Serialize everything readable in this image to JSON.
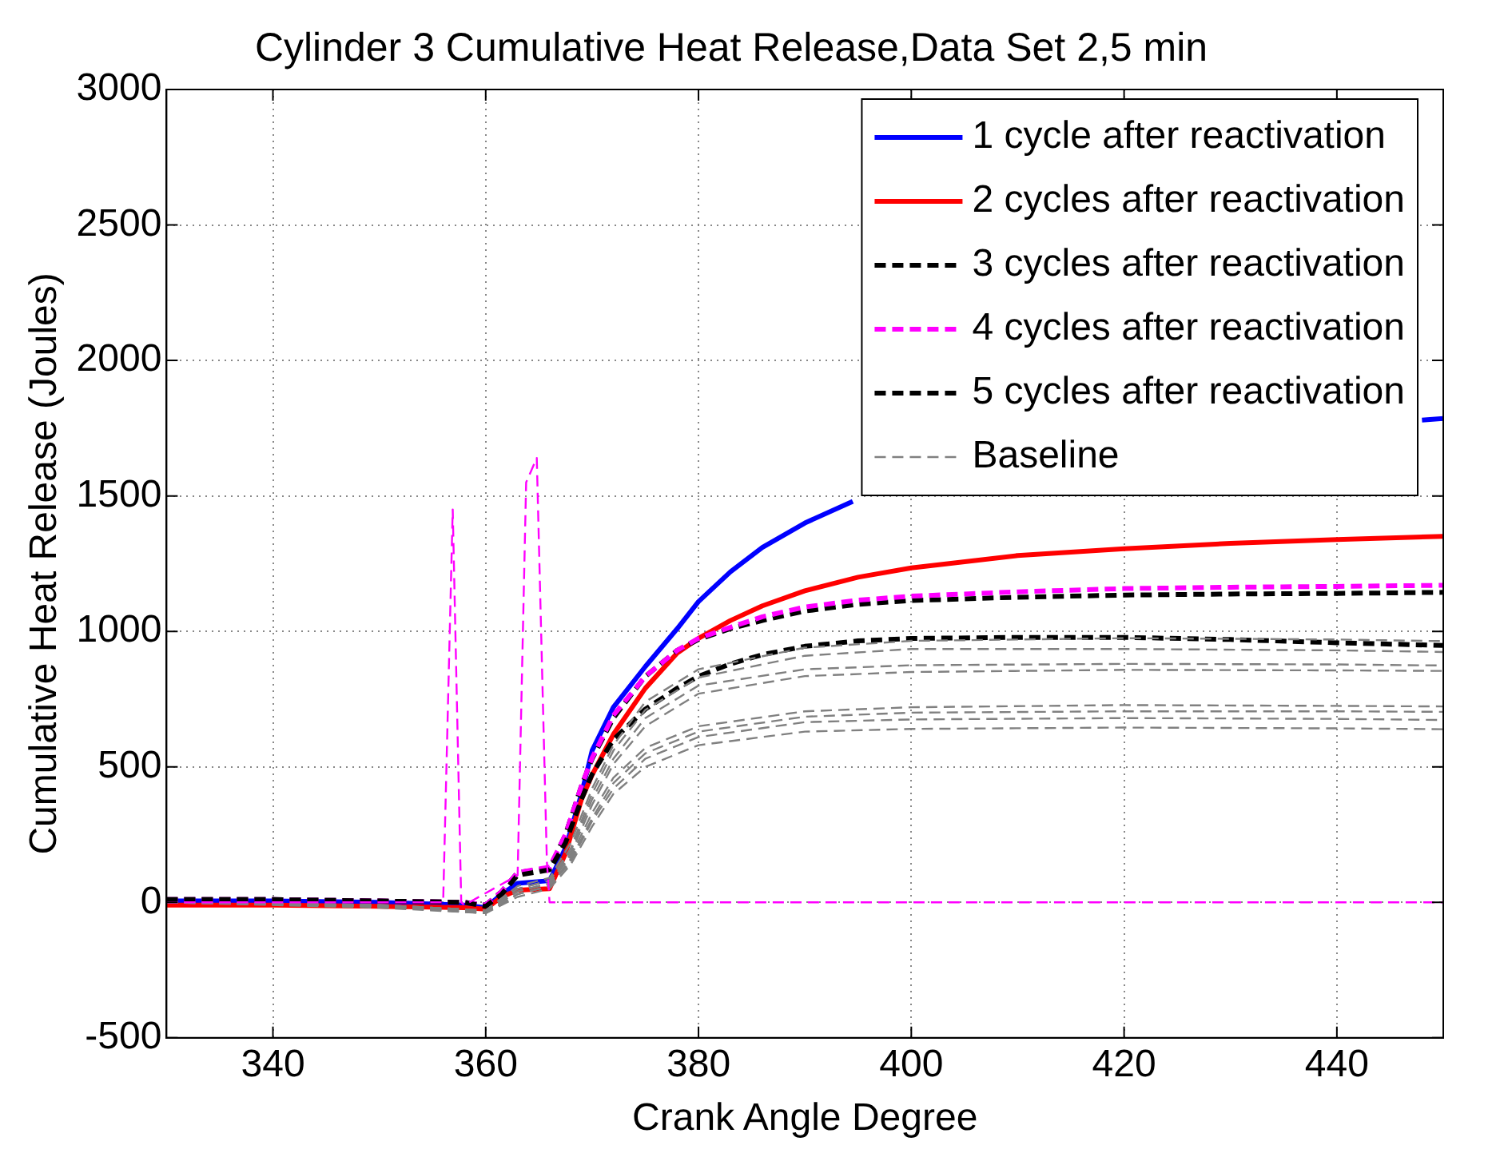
{
  "chart_data": {
    "type": "line",
    "title": "Cylinder 3 Cumulative Heat Release,Data Set 2,5 min",
    "xlabel": "Crank Angle Degree",
    "ylabel": "Cumulative Heat Release (Joules)",
    "xlim": [
      330,
      450
    ],
    "xticks": [
      340,
      360,
      380,
      400,
      420,
      440
    ],
    "ylim": [
      -500,
      3000
    ],
    "yticks": [
      -500,
      0,
      500,
      1000,
      1500,
      2000,
      2500,
      3000
    ],
    "grid": true,
    "legend": "top right",
    "marker": "none",
    "series": [
      {
        "name": "1 cycle after reactivation",
        "color": "#0000ff",
        "line_style": "solid",
        "x": [
          330,
          340,
          350,
          358,
          360,
          361.5,
          363,
          366,
          367.5,
          369,
          370,
          372,
          375,
          378,
          380,
          383,
          386,
          390,
          394.5,
          395,
          448,
          450
        ],
        "values": [
          5,
          5,
          0,
          -10,
          -20,
          30,
          70,
          80,
          200,
          400,
          560,
          720,
          870,
          1010,
          1110,
          1220,
          1310,
          1400,
          1480,
          null,
          1780,
          1786
        ]
      },
      {
        "name": "2 cycles after reactivation",
        "color": "#ff0000",
        "line_style": "solid",
        "x": [
          330,
          340,
          350,
          358,
          360,
          361.5,
          363,
          366,
          367.5,
          369,
          370,
          372,
          375,
          378,
          380,
          383,
          386,
          390,
          395,
          400,
          410,
          420,
          430,
          440,
          450
        ],
        "values": [
          -10,
          -10,
          -15,
          -20,
          -25,
          20,
          45,
          50,
          180,
          380,
          470,
          620,
          790,
          920,
          974,
          1040,
          1094,
          1150,
          1200,
          1234,
          1280,
          1305,
          1325,
          1339,
          1351
        ]
      },
      {
        "name": "3 cycles after reactivation",
        "color": "#000000",
        "line_style": "dashed",
        "x": [
          330,
          340,
          350,
          358,
          360,
          361.5,
          363,
          366,
          367.5,
          369,
          370,
          372,
          375,
          378,
          380,
          383,
          386,
          390,
          395,
          400,
          410,
          420,
          430,
          440,
          450
        ],
        "values": [
          10,
          10,
          5,
          0,
          -10,
          40,
          110,
          125,
          250,
          430,
          530,
          680,
          834,
          930,
          970,
          1010,
          1040,
          1075,
          1100,
          1114,
          1126,
          1134,
          1138,
          1140,
          1144
        ]
      },
      {
        "name": "4 cycles after reactivation",
        "color": "#ff00ff",
        "line_style": "dashed",
        "x": [
          330,
          340,
          350,
          358,
          360,
          361.5,
          363,
          366,
          367.5,
          369,
          370,
          372,
          375,
          378,
          380,
          383,
          386,
          390,
          395,
          400,
          410,
          420,
          430,
          440,
          450
        ],
        "values": [
          10,
          10,
          5,
          0,
          -10,
          40,
          110,
          130,
          250,
          430,
          533,
          690,
          834,
          930,
          974,
          1015,
          1054,
          1090,
          1115,
          1130,
          1146,
          1158,
          1163,
          1166,
          1170
        ]
      },
      {
        "name": "5 cycles after reactivation",
        "color": "#000000",
        "line_style": "dashed",
        "x": [
          330,
          340,
          350,
          358,
          360,
          361.5,
          363,
          366,
          367.5,
          369,
          370,
          372,
          375,
          378,
          380,
          383,
          386,
          390,
          395,
          400,
          410,
          420,
          430,
          440,
          450
        ],
        "values": [
          10,
          10,
          5,
          0,
          -15,
          30,
          100,
          120,
          220,
          380,
          473,
          600,
          713,
          790,
          834,
          880,
          914,
          945,
          965,
          974,
          978,
          978,
          970,
          958,
          948
        ]
      },
      {
        "name": "Baseline",
        "color": "#808080",
        "line_style": "dashed",
        "x": [
          330,
          350,
          360,
          363,
          366,
          368,
          370,
          372,
          375,
          380,
          390,
          400,
          420,
          440,
          450
        ],
        "values": [
          0,
          -10,
          -30,
          60,
          90,
          220,
          420,
          580,
          740,
          860,
          940,
          965,
          975,
          970,
          964
        ]
      },
      {
        "color": "#808080",
        "line_style": "dashed",
        "x": [
          330,
          350,
          360,
          363,
          366,
          368,
          370,
          372,
          375,
          380,
          390,
          400,
          420,
          440,
          450
        ],
        "values": [
          0,
          -10,
          -30,
          50,
          80,
          200,
          400,
          560,
          710,
          830,
          910,
          935,
          935,
          930,
          924
        ]
      },
      {
        "color": "#808080",
        "line_style": "dashed",
        "x": [
          330,
          350,
          360,
          363,
          366,
          368,
          370,
          372,
          375,
          380,
          390,
          400,
          420,
          440,
          450
        ],
        "values": [
          0,
          -10,
          -30,
          50,
          80,
          190,
          380,
          530,
          680,
          800,
          860,
          875,
          880,
          878,
          874
        ]
      },
      {
        "color": "#808080",
        "line_style": "dashed",
        "x": [
          330,
          350,
          360,
          363,
          366,
          368,
          370,
          372,
          375,
          380,
          390,
          400,
          420,
          440,
          450
        ],
        "values": [
          0,
          -15,
          -35,
          40,
          70,
          180,
          360,
          510,
          650,
          770,
          835,
          850,
          858,
          856,
          854
        ]
      },
      {
        "color": "#808080",
        "line_style": "dashed",
        "x": [
          330,
          350,
          360,
          363,
          366,
          368,
          370,
          372,
          375,
          380,
          390,
          400,
          420,
          440,
          450
        ],
        "values": [
          0,
          -15,
          -35,
          40,
          70,
          170,
          330,
          460,
          570,
          650,
          705,
          720,
          728,
          725,
          723
        ]
      },
      {
        "color": "#808080",
        "line_style": "dashed",
        "x": [
          330,
          350,
          360,
          363,
          366,
          368,
          370,
          372,
          375,
          380,
          390,
          400,
          420,
          440,
          450
        ],
        "values": [
          0,
          -15,
          -40,
          30,
          60,
          160,
          310,
          440,
          550,
          630,
          685,
          700,
          705,
          705,
          703
        ]
      },
      {
        "color": "#808080",
        "line_style": "dashed",
        "x": [
          330,
          350,
          360,
          363,
          366,
          368,
          370,
          372,
          375,
          380,
          390,
          400,
          420,
          440,
          450
        ],
        "values": [
          0,
          -15,
          -40,
          30,
          60,
          150,
          300,
          420,
          530,
          610,
          665,
          675,
          680,
          677,
          673
        ]
      },
      {
        "color": "#808080",
        "line_style": "dashed",
        "x": [
          330,
          350,
          360,
          363,
          366,
          368,
          370,
          372,
          375,
          380,
          390,
          400,
          420,
          440,
          450
        ],
        "values": [
          0,
          -20,
          -40,
          20,
          50,
          140,
          280,
          400,
          500,
          580,
          630,
          640,
          645,
          642,
          639
        ]
      },
      {
        "color": "#ff00ff",
        "line_style": "dashed",
        "x": [
          330,
          356,
          356.9,
          357.7,
          358,
          363,
          363.8,
          364.8,
          365.75,
          366,
          450
        ],
        "values": [
          0,
          0,
          1450,
          0,
          -10,
          100,
          1550,
          1640,
          150,
          0,
          0
        ]
      }
    ]
  }
}
